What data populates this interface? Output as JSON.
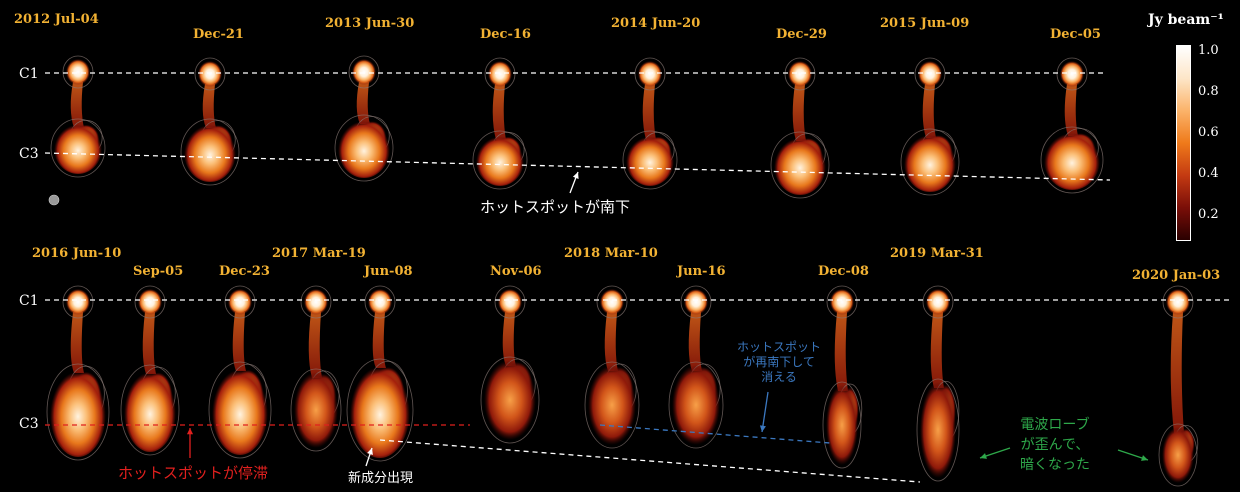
{
  "colorbar": {
    "label": "Jy beam⁻¹",
    "ticks": [
      "1.0",
      "0.8",
      "0.6",
      "0.4",
      "0.2"
    ],
    "gradient": [
      "#ffffff",
      "#fde6c8",
      "#fbb36a",
      "#ef7a1a",
      "#c43a12",
      "#7a0e08",
      "#2a0000"
    ]
  },
  "top_row": {
    "labels": [
      "C1",
      "C3"
    ],
    "dates": [
      "2012 Jul-04",
      "Dec-21",
      "2013 Jun-30",
      "Dec-16",
      "2014 Jun-20",
      "Dec-29",
      "2015 Jun-09",
      "Dec-05"
    ]
  },
  "bottom_row": {
    "labels": [
      "C1",
      "C3"
    ],
    "dates": [
      "2016 Jun-10",
      "Sep-05",
      "Dec-23",
      "2017 Mar-19",
      "Jun-08",
      "Nov-06",
      "2018 Mar-10",
      "Jun-16",
      "Dec-08",
      "2019 Mar-31",
      "2020 Jan-03"
    ]
  },
  "annotations": {
    "hotspot_south": "ホットスポットが南下",
    "hotspot_stagnant": "ホットスポットが停滞",
    "new_component": "新成分出現",
    "hotspot_south_again": [
      "ホットスポット",
      "が再南下して",
      "消える"
    ],
    "lobe_distorted": [
      "電波ローブ",
      "が歪んで、",
      "暗くなった"
    ]
  },
  "colors": {
    "date_label": "#f2b233",
    "hotspot_stagnant": "#e0201e",
    "hotspot_south_again": "#3b78c0",
    "lobe_distorted": "#2ea84a"
  }
}
